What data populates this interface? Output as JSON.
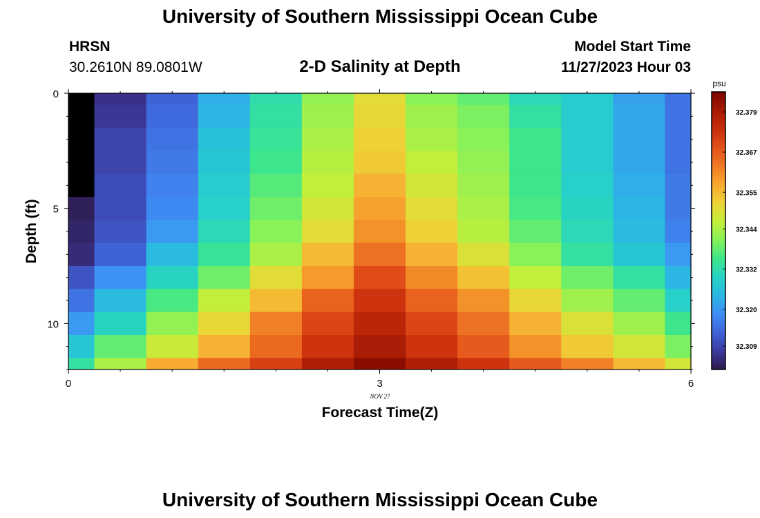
{
  "header": {
    "title": "University of Southern Mississippi Ocean Cube",
    "station": "HRSN",
    "coords": "30.2610N  89.0801W",
    "subtitle": "2-D Salinity at Depth",
    "model_label": "Model Start Time",
    "model_time": "11/27/2023 Hour 03"
  },
  "footer": {
    "title": "University of Southern Mississippi Ocean Cube"
  },
  "chart_data": {
    "type": "heatmap",
    "title": "2-D Salinity at Depth",
    "xlabel": "Forecast Time(Z)",
    "ylabel": "Depth (ft)",
    "x_date_label": "NOV 27",
    "xlim": [
      0,
      6
    ],
    "ylim": [
      0,
      12
    ],
    "x_ticks": [
      0,
      3,
      6
    ],
    "y_ticks": [
      0,
      5,
      10
    ],
    "y_inverted": true,
    "x_edges": [
      0,
      0.25,
      0.75,
      1.25,
      1.75,
      2.25,
      2.75,
      3.25,
      3.75,
      4.25,
      4.75,
      5.25,
      5.75,
      6
    ],
    "y_edges": [
      0,
      0.5,
      1.5,
      2.5,
      3.5,
      4.5,
      5.5,
      6.5,
      7.5,
      8.5,
      9.5,
      10.5,
      11.5,
      12
    ],
    "values": [
      [
        32.297,
        32.306,
        32.313,
        32.323,
        32.332,
        32.342,
        32.35,
        32.341,
        32.338,
        32.331,
        32.328,
        32.321,
        32.315
      ],
      [
        32.301,
        32.307,
        32.314,
        32.324,
        32.333,
        32.343,
        32.351,
        32.343,
        32.34,
        32.333,
        32.328,
        32.322,
        32.315
      ],
      [
        32.301,
        32.309,
        32.315,
        32.326,
        32.334,
        32.344,
        32.352,
        32.344,
        32.341,
        32.335,
        32.328,
        32.322,
        32.315
      ],
      [
        32.302,
        32.309,
        32.316,
        32.327,
        32.335,
        32.345,
        32.353,
        32.346,
        32.342,
        32.335,
        32.328,
        32.322,
        32.315
      ],
      [
        32.302,
        32.31,
        32.317,
        32.328,
        32.337,
        32.346,
        32.356,
        32.348,
        32.343,
        32.335,
        32.329,
        32.323,
        32.316
      ],
      [
        32.303,
        32.31,
        32.318,
        32.329,
        32.339,
        32.348,
        32.358,
        32.35,
        32.344,
        32.336,
        32.33,
        32.324,
        32.316
      ],
      [
        32.304,
        32.311,
        32.32,
        32.331,
        32.341,
        32.35,
        32.36,
        32.352,
        32.345,
        32.338,
        32.331,
        32.325,
        32.317
      ],
      [
        32.305,
        32.313,
        32.325,
        32.334,
        32.344,
        32.355,
        32.364,
        32.356,
        32.349,
        32.341,
        32.333,
        32.327,
        32.32
      ],
      [
        32.311,
        32.319,
        32.33,
        32.339,
        32.35,
        32.359,
        32.369,
        32.361,
        32.354,
        32.346,
        32.339,
        32.333,
        32.324
      ],
      [
        32.315,
        32.325,
        32.336,
        32.346,
        32.355,
        32.366,
        32.373,
        32.366,
        32.36,
        32.351,
        32.343,
        32.338,
        32.329
      ],
      [
        32.32,
        32.33,
        32.342,
        32.351,
        32.362,
        32.37,
        32.376,
        32.37,
        32.364,
        32.356,
        32.349,
        32.343,
        32.335
      ],
      [
        32.327,
        32.338,
        32.347,
        32.356,
        32.365,
        32.373,
        32.379,
        32.373,
        32.367,
        32.36,
        32.353,
        32.348,
        32.34
      ],
      [
        32.333,
        32.344,
        32.357,
        32.365,
        32.371,
        32.378,
        32.383,
        32.378,
        32.373,
        32.367,
        32.362,
        32.355,
        32.348
      ]
    ],
    "colorbar": {
      "unit": "psu",
      "vmin": 32.302,
      "vmax": 32.385,
      "labels": [
        "32.379",
        "32.367",
        "32.355",
        "32.344",
        "32.332",
        "32.320",
        "32.309"
      ],
      "colors": [
        "#2d1a4a",
        "#3c3a9e",
        "#3f63d8",
        "#3f8ff5",
        "#2ab7e3",
        "#27d3c5",
        "#3ee68a",
        "#86f25a",
        "#c5ee3a",
        "#eed337",
        "#f8a830",
        "#f07a24",
        "#e3501a",
        "#c72d0b",
        "#a61a04",
        "#7c0600"
      ]
    }
  }
}
